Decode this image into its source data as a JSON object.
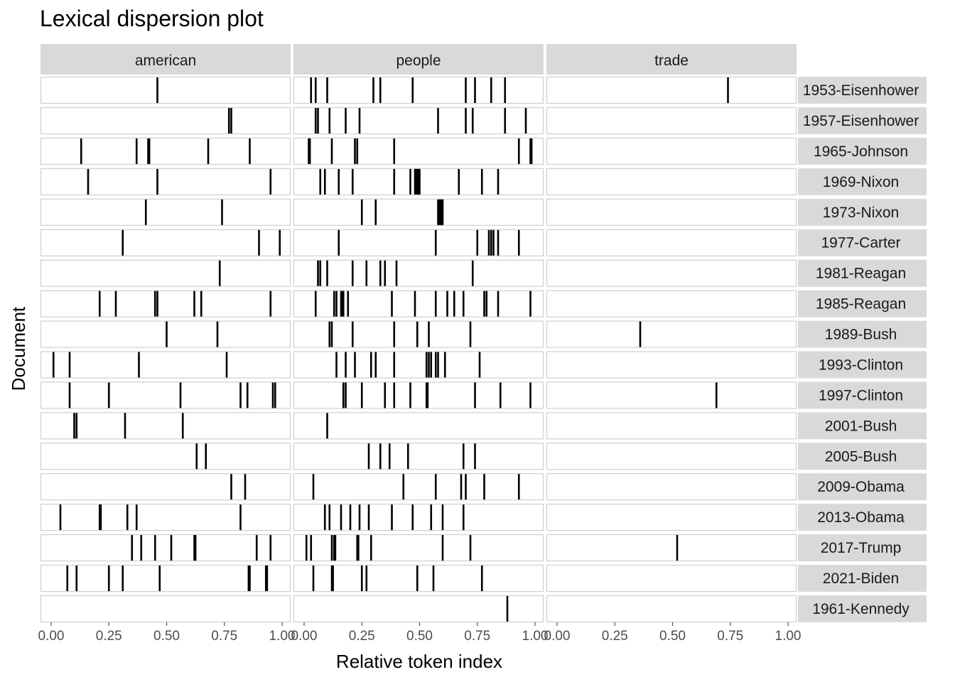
{
  "chart_data": {
    "type": "scatter",
    "title": "Lexical dispersion plot",
    "xlabel": "Relative token index",
    "ylabel": "Document",
    "xlim": [
      0,
      1
    ],
    "x_ticks": [
      "0.00",
      "0.25",
      "0.50",
      "0.75",
      "1.00"
    ],
    "facets_columns": [
      "american",
      "people",
      "trade"
    ],
    "documents": [
      "1953-Eisenhower",
      "1957-Eisenhower",
      "1965-Johnson",
      "1969-Nixon",
      "1973-Nixon",
      "1977-Carter",
      "1981-Reagan",
      "1985-Reagan",
      "1989-Bush",
      "1993-Clinton",
      "1997-Clinton",
      "2001-Bush",
      "2005-Bush",
      "2009-Obama",
      "2013-Obama",
      "2017-Trump",
      "2021-Biden",
      "1961-Kennedy"
    ],
    "grid": false,
    "panel_background": "#ffffff",
    "strip_background": "#d9d9d9",
    "mark_color": "#000000",
    "occurrences": {
      "american": {
        "1953-Eisenhower": [
          0.46
        ],
        "1957-Eisenhower": [
          0.77,
          0.78
        ],
        "1965-Johnson": [
          0.13,
          0.37,
          0.42,
          0.425,
          0.68,
          0.86
        ],
        "1969-Nixon": [
          0.16,
          0.46,
          0.95
        ],
        "1973-Nixon": [
          0.41,
          0.74
        ],
        "1977-Carter": [
          0.31,
          0.9,
          0.99
        ],
        "1981-Reagan": [
          0.73
        ],
        "1985-Reagan": [
          0.21,
          0.28,
          0.45,
          0.46,
          0.62,
          0.65,
          0.95
        ],
        "1989-Bush": [
          0.5,
          0.72
        ],
        "1993-Clinton": [
          0.01,
          0.08,
          0.38,
          0.76
        ],
        "1997-Clinton": [
          0.08,
          0.25,
          0.56,
          0.82,
          0.85,
          0.96,
          0.97
        ],
        "2001-Bush": [
          0.1,
          0.11,
          0.32,
          0.57
        ],
        "2005-Bush": [
          0.63,
          0.67
        ],
        "2009-Obama": [
          0.78,
          0.84
        ],
        "2013-Obama": [
          0.04,
          0.21,
          0.215,
          0.33,
          0.37,
          0.82
        ],
        "2017-Trump": [
          0.35,
          0.39,
          0.45,
          0.52,
          0.62,
          0.625,
          0.89,
          0.95
        ],
        "2021-Biden": [
          0.07,
          0.11,
          0.25,
          0.31,
          0.47,
          0.855,
          0.86,
          0.93,
          0.935
        ],
        "1961-Kennedy": []
      },
      "people": {
        "1953-Eisenhower": [
          0.03,
          0.05,
          0.1,
          0.3,
          0.33,
          0.47,
          0.7,
          0.74,
          0.81,
          0.87
        ],
        "1957-Eisenhower": [
          0.05,
          0.06,
          0.11,
          0.18,
          0.24,
          0.58,
          0.7,
          0.73,
          0.87,
          0.96
        ],
        "1965-Johnson": [
          0.02,
          0.025,
          0.12,
          0.22,
          0.23,
          0.39,
          0.93,
          0.98,
          0.985
        ],
        "1969-Nixon": [
          0.07,
          0.09,
          0.15,
          0.21,
          0.39,
          0.46,
          0.48,
          0.485,
          0.49,
          0.495,
          0.5,
          0.67,
          0.77,
          0.84
        ],
        "1973-Nixon": [
          0.25,
          0.31,
          0.58,
          0.585,
          0.59,
          0.595,
          0.6
        ],
        "1977-Carter": [
          0.15,
          0.57,
          0.75,
          0.8,
          0.81,
          0.82,
          0.84,
          0.93
        ],
        "1981-Reagan": [
          0.06,
          0.07,
          0.1,
          0.21,
          0.27,
          0.33,
          0.35,
          0.4,
          0.73
        ],
        "1985-Reagan": [
          0.05,
          0.13,
          0.14,
          0.16,
          0.165,
          0.17,
          0.19,
          0.38,
          0.48,
          0.57,
          0.62,
          0.65,
          0.69,
          0.78,
          0.79,
          0.84,
          0.98
        ],
        "1989-Bush": [
          0.11,
          0.12,
          0.21,
          0.39,
          0.49,
          0.54,
          0.72
        ],
        "1993-Clinton": [
          0.14,
          0.18,
          0.22,
          0.29,
          0.31,
          0.39,
          0.53,
          0.54,
          0.55,
          0.57,
          0.58,
          0.61,
          0.76
        ],
        "1997-Clinton": [
          0.17,
          0.18,
          0.25,
          0.35,
          0.39,
          0.46,
          0.53,
          0.535,
          0.74,
          0.85,
          0.98
        ],
        "2001-Bush": [
          0.1
        ],
        "2005-Bush": [
          0.28,
          0.33,
          0.37,
          0.45,
          0.69,
          0.74
        ],
        "2009-Obama": [
          0.04,
          0.43,
          0.57,
          0.68,
          0.7,
          0.78,
          0.93
        ],
        "2013-Obama": [
          0.09,
          0.11,
          0.16,
          0.2,
          0.24,
          0.28,
          0.38,
          0.47,
          0.55,
          0.6,
          0.69
        ],
        "2017-Trump": [
          0.01,
          0.03,
          0.12,
          0.13,
          0.135,
          0.23,
          0.235,
          0.29,
          0.6,
          0.72
        ],
        "2021-Biden": [
          0.04,
          0.12,
          0.125,
          0.25,
          0.27,
          0.49,
          0.56,
          0.77
        ],
        "1961-Kennedy": [
          0.88
        ]
      },
      "trade": {
        "1953-Eisenhower": [
          0.74
        ],
        "1957-Eisenhower": [],
        "1965-Johnson": [],
        "1969-Nixon": [],
        "1973-Nixon": [],
        "1977-Carter": [],
        "1981-Reagan": [],
        "1985-Reagan": [],
        "1989-Bush": [
          0.36
        ],
        "1993-Clinton": [],
        "1997-Clinton": [
          0.69
        ],
        "2001-Bush": [],
        "2005-Bush": [],
        "2009-Obama": [],
        "2013-Obama": [],
        "2017-Trump": [
          0.52
        ],
        "2021-Biden": [],
        "1961-Kennedy": []
      }
    }
  }
}
